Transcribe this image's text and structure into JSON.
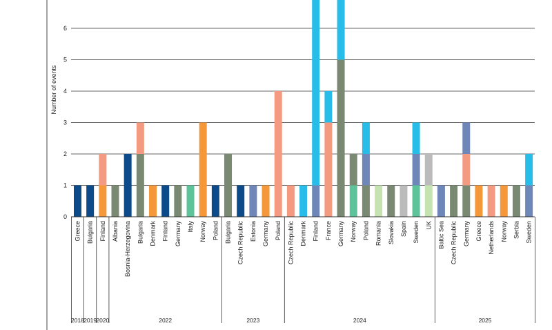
{
  "chart_data": {
    "type": "bar",
    "stacked": true,
    "ylabel": "Number of events",
    "ylim": [
      0,
      7
    ],
    "yticks": [
      0,
      1,
      2,
      3,
      4,
      5,
      6
    ],
    "grid": true,
    "legend": "none",
    "groups": [
      {
        "year": "2018",
        "categories": [
          "Greece"
        ]
      },
      {
        "year": "2019",
        "categories": [
          "Bulgaria"
        ]
      },
      {
        "year": "2020",
        "categories": [
          "Finland"
        ]
      },
      {
        "year": "2022",
        "categories": [
          "Albania",
          "Bosnia-Herzegovina",
          "Bulgaria",
          "Denmark",
          "Finland",
          "Germany",
          "Italy",
          "Norway",
          "Poland"
        ]
      },
      {
        "year": "2023",
        "categories": [
          "Bulgaria",
          "Czech Republic",
          "Estonia",
          "Germany",
          "Poland"
        ]
      },
      {
        "year": "2024",
        "categories": [
          "Czech Republic",
          "Denmark",
          "Finland",
          "France",
          "Germany",
          "Norway",
          "Poland",
          "Romania",
          "Slovakia",
          "Spain",
          "Sweden",
          "UK"
        ]
      },
      {
        "year": "2025",
        "categories": [
          "Baltic Sea",
          "Czech Republic",
          "Germany",
          "Greece",
          "Netherlands",
          "Norway",
          "Serbia",
          "Sweden"
        ]
      }
    ],
    "bars": [
      [
        {
          "v": 1,
          "c": "#0c4a8a"
        }
      ],
      [
        {
          "v": 1,
          "c": "#0c4a8a"
        }
      ],
      [
        {
          "v": 1,
          "c": "#f5983a"
        },
        {
          "v": 1,
          "c": "#f39a80"
        }
      ],
      [
        {
          "v": 1,
          "c": "#7a8a72"
        }
      ],
      [
        {
          "v": 2,
          "c": "#0c4a8a"
        }
      ],
      [
        {
          "v": 2,
          "c": "#7a8a72"
        },
        {
          "v": 1,
          "c": "#f39a80"
        }
      ],
      [
        {
          "v": 1,
          "c": "#f5983a"
        }
      ],
      [
        {
          "v": 1,
          "c": "#0c4a8a"
        }
      ],
      [
        {
          "v": 1,
          "c": "#7a8a72"
        }
      ],
      [
        {
          "v": 1,
          "c": "#5dc39a"
        }
      ],
      [
        {
          "v": 3,
          "c": "#f5983a"
        }
      ],
      [
        {
          "v": 1,
          "c": "#0c4a8a"
        }
      ],
      [
        {
          "v": 2,
          "c": "#7a8a72"
        }
      ],
      [
        {
          "v": 1,
          "c": "#0c4a8a"
        }
      ],
      [
        {
          "v": 1,
          "c": "#6e86b8"
        }
      ],
      [
        {
          "v": 1,
          "c": "#f5983a"
        }
      ],
      [
        {
          "v": 4,
          "c": "#f39a80"
        }
      ],
      [
        {
          "v": 1,
          "c": "#f39a80"
        }
      ],
      [
        {
          "v": 1,
          "c": "#27bde8"
        }
      ],
      [
        {
          "v": 1,
          "c": "#6e86b8"
        },
        {
          "v": 6,
          "c": "#27bde8"
        }
      ],
      [
        {
          "v": 3,
          "c": "#f39a80"
        },
        {
          "v": 1,
          "c": "#27bde8"
        }
      ],
      [
        {
          "v": 5,
          "c": "#7a8a72"
        },
        {
          "v": 2,
          "c": "#27bde8"
        }
      ],
      [
        {
          "v": 1,
          "c": "#5dc39a"
        },
        {
          "v": 1,
          "c": "#7a8a72"
        }
      ],
      [
        {
          "v": 1,
          "c": "#7a8a72"
        },
        {
          "v": 1,
          "c": "#6e86b8"
        },
        {
          "v": 1,
          "c": "#27bde8"
        }
      ],
      [
        {
          "v": 1,
          "c": "#c5e3b0"
        }
      ],
      [
        {
          "v": 1,
          "c": "#7a8a72"
        }
      ],
      [
        {
          "v": 1,
          "c": "#bbbbbb"
        }
      ],
      [
        {
          "v": 1,
          "c": "#5dc39a"
        },
        {
          "v": 1,
          "c": "#6e86b8"
        },
        {
          "v": 1,
          "c": "#27bde8"
        }
      ],
      [
        {
          "v": 1,
          "c": "#c5e3b0"
        },
        {
          "v": 1,
          "c": "#bbbbbb"
        }
      ],
      [
        {
          "v": 1,
          "c": "#6e86b8"
        }
      ],
      [
        {
          "v": 1,
          "c": "#7a8a72"
        }
      ],
      [
        {
          "v": 1,
          "c": "#7a8a72"
        },
        {
          "v": 1,
          "c": "#f39a80"
        },
        {
          "v": 1,
          "c": "#6e86b8"
        }
      ],
      [
        {
          "v": 1,
          "c": "#f5983a"
        }
      ],
      [
        {
          "v": 1,
          "c": "#f39a80"
        }
      ],
      [
        {
          "v": 1,
          "c": "#f5983a"
        }
      ],
      [
        {
          "v": 1,
          "c": "#7a8a72"
        }
      ],
      [
        {
          "v": 1,
          "c": "#6e86b8"
        },
        {
          "v": 1,
          "c": "#27bde8"
        }
      ]
    ]
  }
}
